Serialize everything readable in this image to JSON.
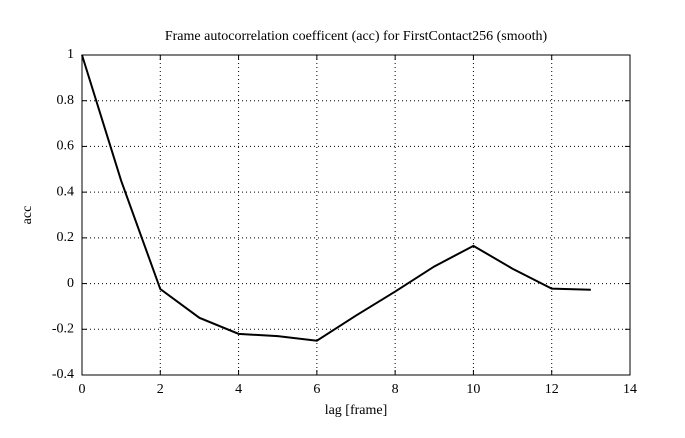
{
  "chart_data": {
    "type": "line",
    "title": "Frame autocorrelation coefficent (acc) for FirstContact256 (smooth)",
    "x_label": "lag [frame]",
    "y_label": "acc",
    "x": [
      0,
      1,
      2,
      3,
      4,
      5,
      6,
      7,
      8,
      9,
      10,
      11,
      12,
      13
    ],
    "series": [
      {
        "color": "#000000",
        "values": [
          1,
          0.45,
          -0.024,
          -0.15,
          -0.22,
          -0.23,
          -0.25,
          -0.14,
          -0.035,
          0.075,
          0.165,
          0.065,
          -0.022,
          -0.027
        ]
      }
    ],
    "xlim": [
      0,
      14
    ],
    "xticks": [
      0,
      2,
      4,
      6,
      8,
      10,
      12,
      14
    ],
    "ylim": [
      -0.4,
      1
    ],
    "yticks": [
      -0.4,
      -0.2,
      0,
      0.2,
      0.4,
      0.6,
      0.8,
      1
    ],
    "grid": true
  }
}
